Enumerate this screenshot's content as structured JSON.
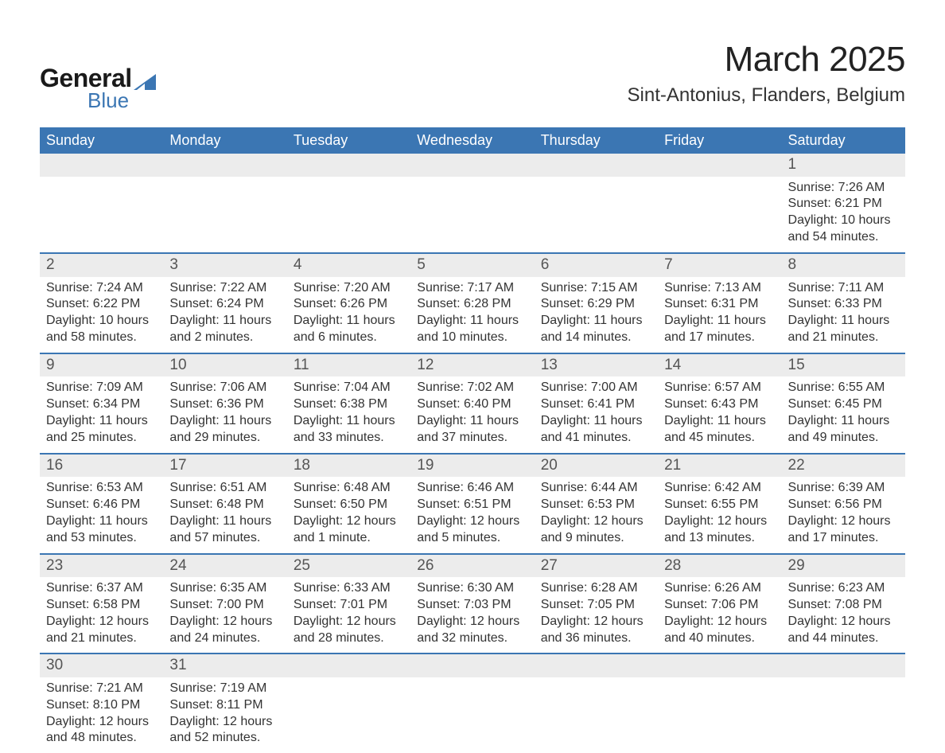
{
  "brand": {
    "line1": "General",
    "line2": "Blue",
    "accent_color": "#3b76b3"
  },
  "title": "March 2025",
  "location": "Sint-Antonius, Flanders, Belgium",
  "colors": {
    "header_bg": "#3b76b3",
    "header_fg": "#ffffff",
    "daynum_bg": "#ececec",
    "row_divider": "#3b76b3",
    "text": "#333333",
    "background": "#ffffff"
  },
  "weekdays": [
    "Sunday",
    "Monday",
    "Tuesday",
    "Wednesday",
    "Thursday",
    "Friday",
    "Saturday"
  ],
  "weeks": [
    [
      null,
      null,
      null,
      null,
      null,
      null,
      {
        "n": "1",
        "sunrise": "7:26 AM",
        "sunset": "6:21 PM",
        "daylight": "10 hours and 54 minutes."
      }
    ],
    [
      {
        "n": "2",
        "sunrise": "7:24 AM",
        "sunset": "6:22 PM",
        "daylight": "10 hours and 58 minutes."
      },
      {
        "n": "3",
        "sunrise": "7:22 AM",
        "sunset": "6:24 PM",
        "daylight": "11 hours and 2 minutes."
      },
      {
        "n": "4",
        "sunrise": "7:20 AM",
        "sunset": "6:26 PM",
        "daylight": "11 hours and 6 minutes."
      },
      {
        "n": "5",
        "sunrise": "7:17 AM",
        "sunset": "6:28 PM",
        "daylight": "11 hours and 10 minutes."
      },
      {
        "n": "6",
        "sunrise": "7:15 AM",
        "sunset": "6:29 PM",
        "daylight": "11 hours and 14 minutes."
      },
      {
        "n": "7",
        "sunrise": "7:13 AM",
        "sunset": "6:31 PM",
        "daylight": "11 hours and 17 minutes."
      },
      {
        "n": "8",
        "sunrise": "7:11 AM",
        "sunset": "6:33 PM",
        "daylight": "11 hours and 21 minutes."
      }
    ],
    [
      {
        "n": "9",
        "sunrise": "7:09 AM",
        "sunset": "6:34 PM",
        "daylight": "11 hours and 25 minutes."
      },
      {
        "n": "10",
        "sunrise": "7:06 AM",
        "sunset": "6:36 PM",
        "daylight": "11 hours and 29 minutes."
      },
      {
        "n": "11",
        "sunrise": "7:04 AM",
        "sunset": "6:38 PM",
        "daylight": "11 hours and 33 minutes."
      },
      {
        "n": "12",
        "sunrise": "7:02 AM",
        "sunset": "6:40 PM",
        "daylight": "11 hours and 37 minutes."
      },
      {
        "n": "13",
        "sunrise": "7:00 AM",
        "sunset": "6:41 PM",
        "daylight": "11 hours and 41 minutes."
      },
      {
        "n": "14",
        "sunrise": "6:57 AM",
        "sunset": "6:43 PM",
        "daylight": "11 hours and 45 minutes."
      },
      {
        "n": "15",
        "sunrise": "6:55 AM",
        "sunset": "6:45 PM",
        "daylight": "11 hours and 49 minutes."
      }
    ],
    [
      {
        "n": "16",
        "sunrise": "6:53 AM",
        "sunset": "6:46 PM",
        "daylight": "11 hours and 53 minutes."
      },
      {
        "n": "17",
        "sunrise": "6:51 AM",
        "sunset": "6:48 PM",
        "daylight": "11 hours and 57 minutes."
      },
      {
        "n": "18",
        "sunrise": "6:48 AM",
        "sunset": "6:50 PM",
        "daylight": "12 hours and 1 minute."
      },
      {
        "n": "19",
        "sunrise": "6:46 AM",
        "sunset": "6:51 PM",
        "daylight": "12 hours and 5 minutes."
      },
      {
        "n": "20",
        "sunrise": "6:44 AM",
        "sunset": "6:53 PM",
        "daylight": "12 hours and 9 minutes."
      },
      {
        "n": "21",
        "sunrise": "6:42 AM",
        "sunset": "6:55 PM",
        "daylight": "12 hours and 13 minutes."
      },
      {
        "n": "22",
        "sunrise": "6:39 AM",
        "sunset": "6:56 PM",
        "daylight": "12 hours and 17 minutes."
      }
    ],
    [
      {
        "n": "23",
        "sunrise": "6:37 AM",
        "sunset": "6:58 PM",
        "daylight": "12 hours and 21 minutes."
      },
      {
        "n": "24",
        "sunrise": "6:35 AM",
        "sunset": "7:00 PM",
        "daylight": "12 hours and 24 minutes."
      },
      {
        "n": "25",
        "sunrise": "6:33 AM",
        "sunset": "7:01 PM",
        "daylight": "12 hours and 28 minutes."
      },
      {
        "n": "26",
        "sunrise": "6:30 AM",
        "sunset": "7:03 PM",
        "daylight": "12 hours and 32 minutes."
      },
      {
        "n": "27",
        "sunrise": "6:28 AM",
        "sunset": "7:05 PM",
        "daylight": "12 hours and 36 minutes."
      },
      {
        "n": "28",
        "sunrise": "6:26 AM",
        "sunset": "7:06 PM",
        "daylight": "12 hours and 40 minutes."
      },
      {
        "n": "29",
        "sunrise": "6:23 AM",
        "sunset": "7:08 PM",
        "daylight": "12 hours and 44 minutes."
      }
    ],
    [
      {
        "n": "30",
        "sunrise": "7:21 AM",
        "sunset": "8:10 PM",
        "daylight": "12 hours and 48 minutes."
      },
      {
        "n": "31",
        "sunrise": "7:19 AM",
        "sunset": "8:11 PM",
        "daylight": "12 hours and 52 minutes."
      },
      null,
      null,
      null,
      null,
      null
    ]
  ],
  "labels": {
    "sunrise": "Sunrise:",
    "sunset": "Sunset:",
    "daylight": "Daylight:"
  }
}
